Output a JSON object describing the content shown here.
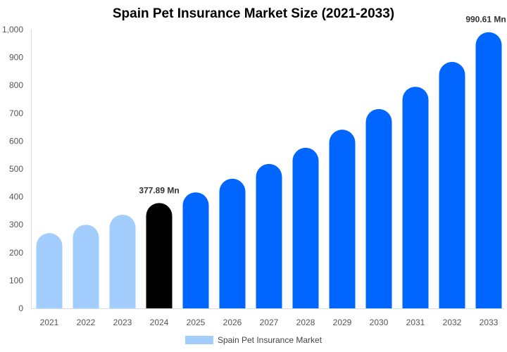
{
  "chart_data": {
    "type": "bar",
    "title": "Spain Pet Insurance Market Size (2021-2033)",
    "categories": [
      "2021",
      "2022",
      "2023",
      "2024",
      "2025",
      "2026",
      "2027",
      "2028",
      "2029",
      "2030",
      "2031",
      "2032",
      "2033"
    ],
    "series": [
      {
        "name": "Spain Pet Insurance Market",
        "values": [
          270,
          300,
          336,
          377.89,
          416,
          465,
          518,
          576,
          641,
          715,
          795,
          884,
          990.61
        ]
      }
    ],
    "bar_colors": [
      "#a3cdfc",
      "#a3cdfc",
      "#a3cdfc",
      "#000000",
      "#0066ff",
      "#0066ff",
      "#0066ff",
      "#0066ff",
      "#0066ff",
      "#0066ff",
      "#0066ff",
      "#0066ff",
      "#0066ff"
    ],
    "data_labels": [
      {
        "category": "2024",
        "text": "377.89 Mn"
      },
      {
        "category": "2033",
        "text": "990.61 Mn"
      }
    ],
    "yticks": [
      "0",
      "100",
      "200",
      "300",
      "400",
      "500",
      "600",
      "700",
      "800",
      "900",
      "1,000"
    ],
    "ylim": [
      0,
      1000
    ],
    "xlabel": "",
    "ylabel": "",
    "grid": false,
    "legend": "bottom",
    "legend_color": "#a3cdfc"
  }
}
